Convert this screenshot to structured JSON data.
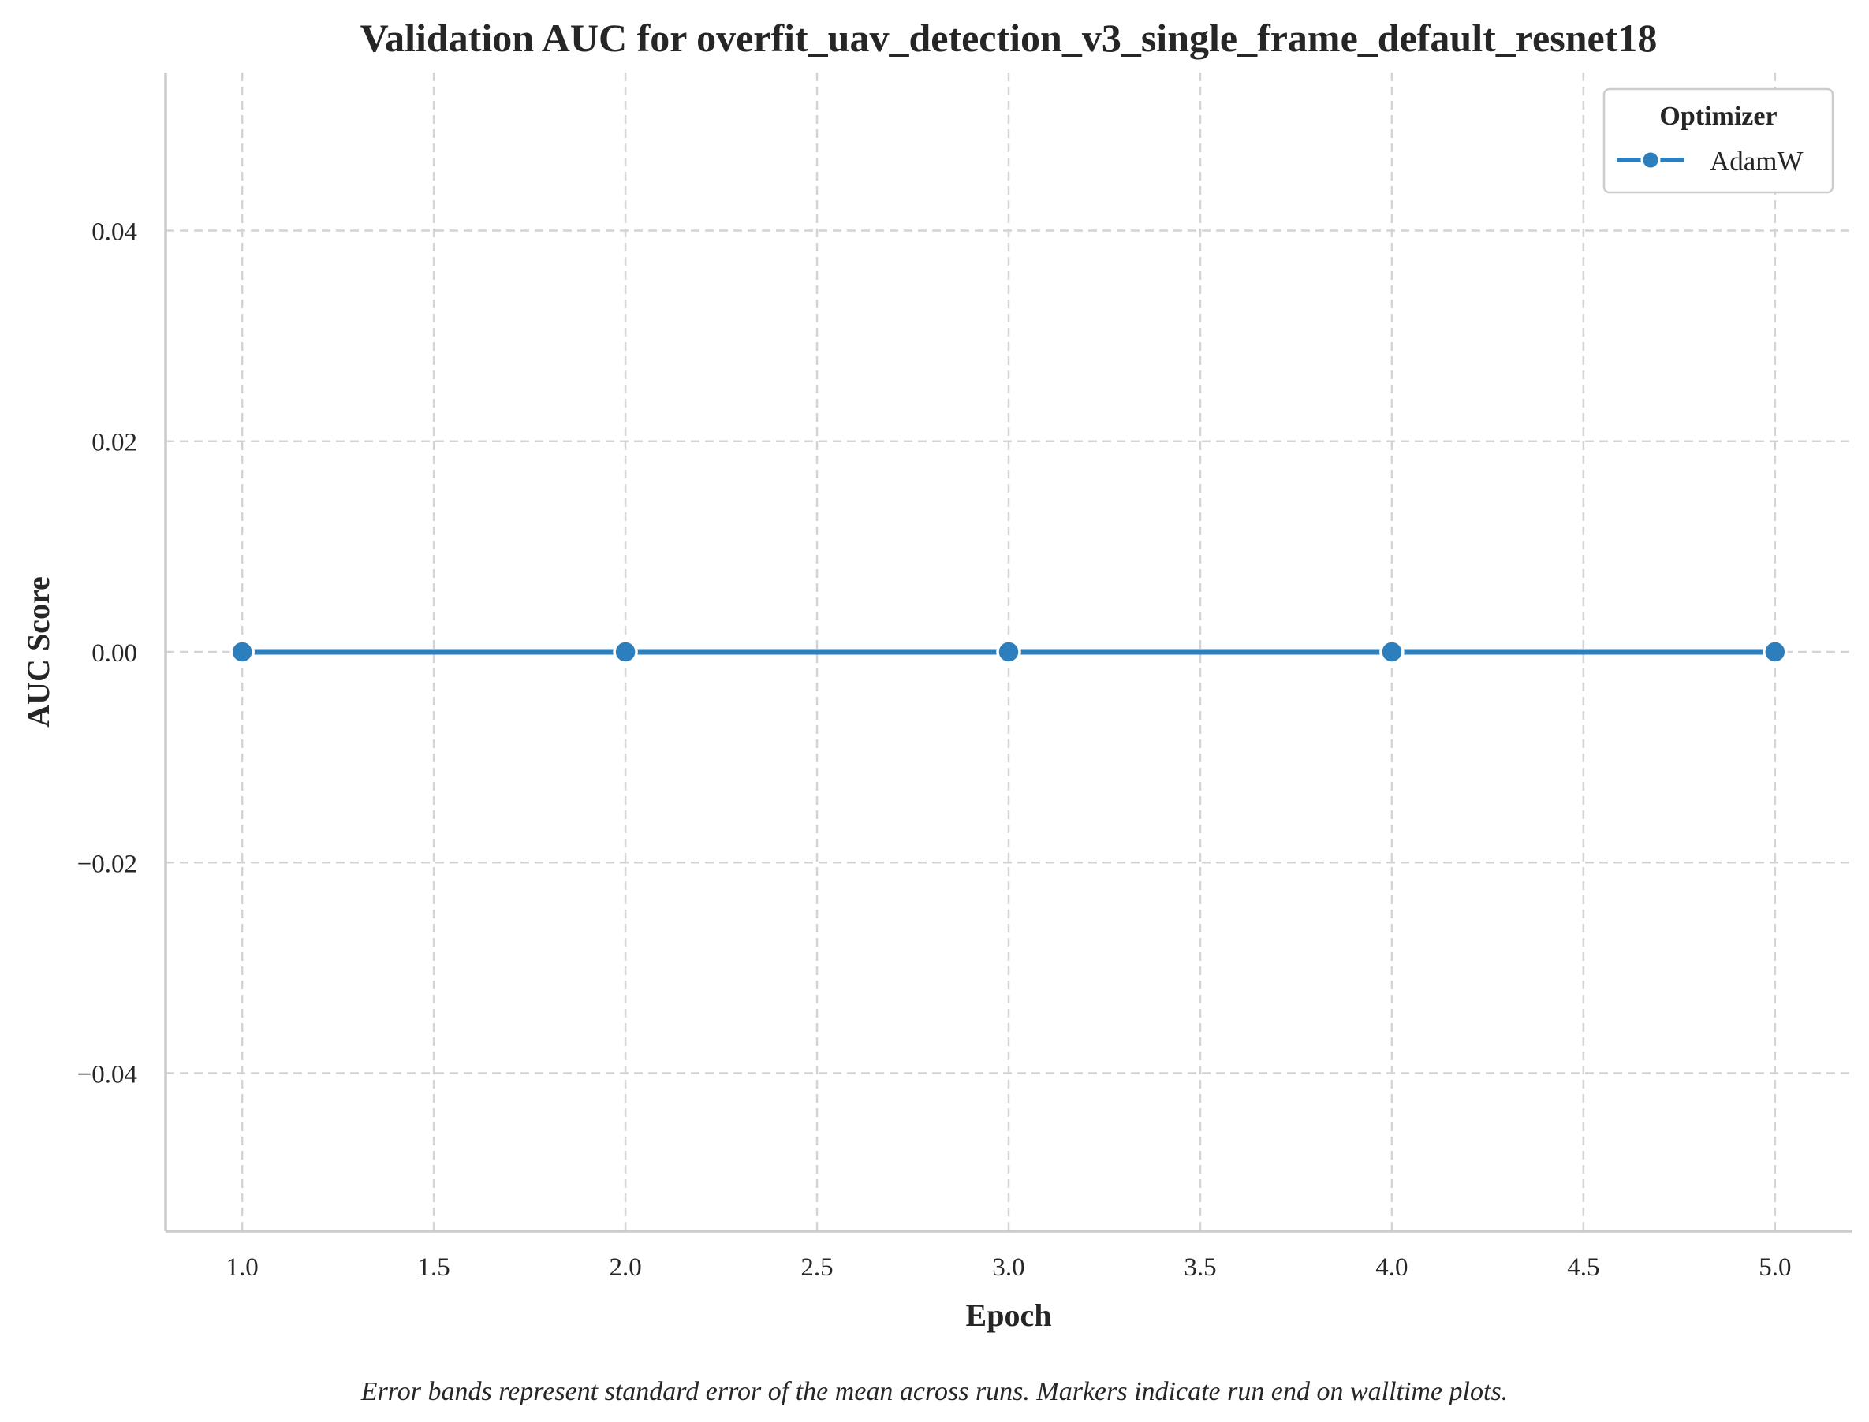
{
  "chart_data": {
    "type": "line",
    "title": "Validation AUC for overfit_uav_detection_v3_single_frame_default_resnet18",
    "xlabel": "Epoch",
    "ylabel": "AUC Score",
    "xlim": [
      0.8,
      5.2
    ],
    "ylim": [
      -0.055,
      0.055
    ],
    "x_ticks": [
      1.0,
      1.5,
      2.0,
      2.5,
      3.0,
      3.5,
      4.0,
      4.5,
      5.0
    ],
    "x_tick_labels": [
      "1.0",
      "1.5",
      "2.0",
      "2.5",
      "3.0",
      "3.5",
      "4.0",
      "4.5",
      "5.0"
    ],
    "y_ticks": [
      0.04,
      0.02,
      0.0,
      -0.02,
      -0.04
    ],
    "y_tick_labels": [
      "0.04",
      "0.02",
      "0.00",
      "−0.02",
      "−0.04"
    ],
    "grid": true,
    "legend": {
      "title": "Optimizer",
      "placement": "top-right"
    },
    "series": [
      {
        "name": "AdamW",
        "color": "#2d7ebc",
        "x": [
          1,
          2,
          3,
          4,
          5
        ],
        "y": [
          0.0,
          0.0,
          0.0,
          0.0,
          0.0
        ]
      }
    ],
    "caption": "Error bands represent standard error of the mean across runs. Markers indicate run end on walltime plots."
  }
}
